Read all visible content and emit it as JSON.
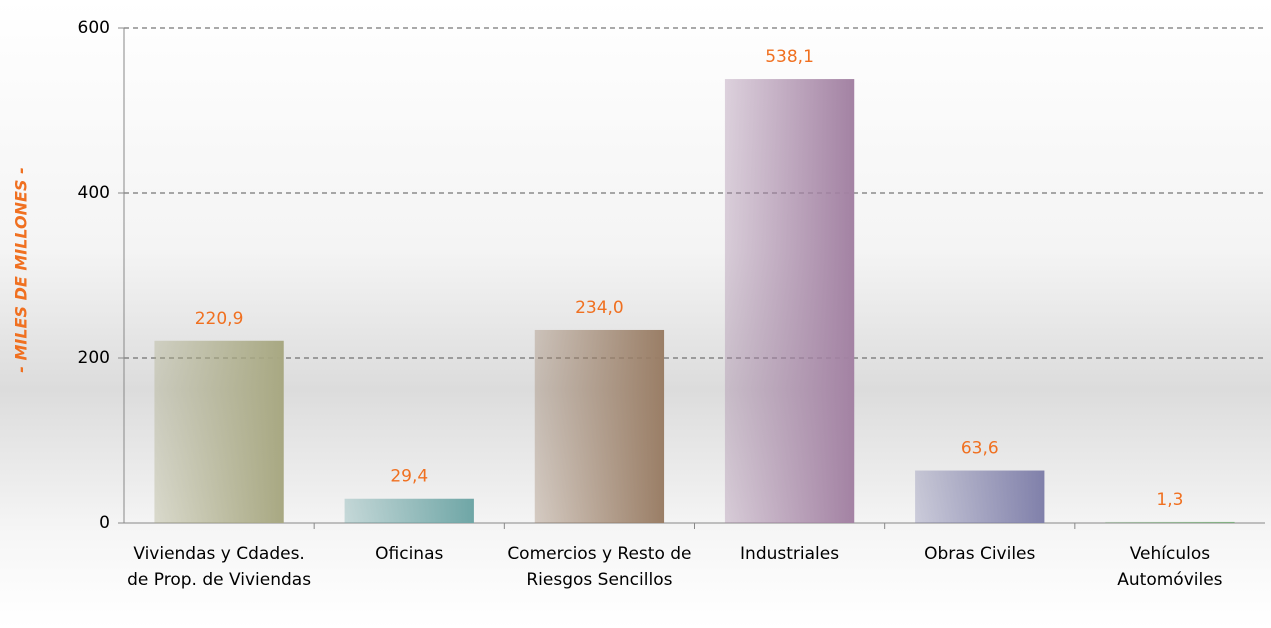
{
  "chart_data": {
    "type": "bar",
    "y_axis_label": "- MILES DE MILLONES -",
    "categories": [
      "Viviendas y Cdades. de Prop. de Viviendas",
      "Oficinas",
      "Comercios y Resto de Riesgos Sencillos",
      "Industriales",
      "Obras Civiles",
      "Vehículos Automóviles"
    ],
    "values": [
      220.9,
      29.4,
      234.0,
      538.1,
      63.6,
      1.3
    ],
    "value_labels": [
      "220,9",
      "29,4",
      "234,0",
      "538,1",
      "63,6",
      "1,3"
    ],
    "colors": [
      "#a8a882",
      "#6fa6a6",
      "#9a7e66",
      "#a382a3",
      "#8080aa",
      "#7fae7f"
    ],
    "ylim": [
      0,
      600
    ],
    "yticks": [
      0,
      200,
      400,
      600
    ],
    "grid": true
  }
}
